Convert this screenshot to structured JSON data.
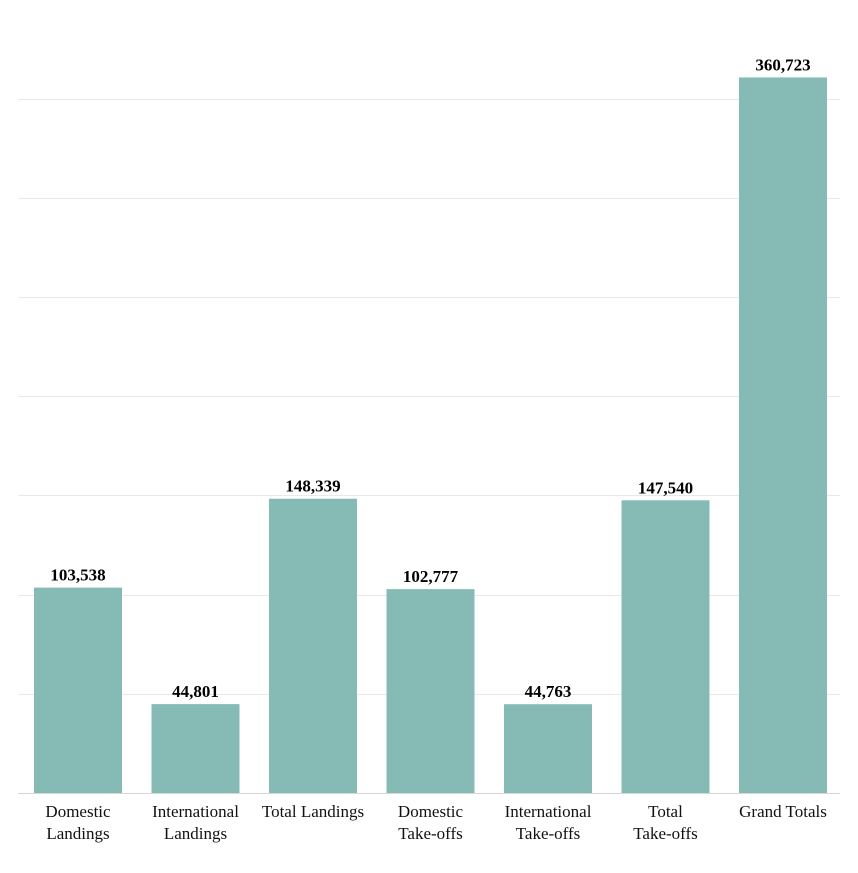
{
  "chart_data": {
    "type": "bar",
    "title": "",
    "xlabel": "",
    "ylabel": "",
    "categories": [
      [
        "Domestic",
        "Landings"
      ],
      [
        "International",
        "Landings"
      ],
      [
        "Total Landings"
      ],
      [
        "Domestic",
        "Take-offs"
      ],
      [
        "International",
        "Take-offs"
      ],
      [
        "Total",
        "Take-offs"
      ],
      [
        "Grand Totals"
      ]
    ],
    "values": [
      103538,
      44801,
      148339,
      102777,
      44763,
      147540,
      360723
    ],
    "value_labels": [
      "103,538",
      "44,801",
      "148,339",
      "102,777",
      "44,763",
      "147,540",
      "360,723"
    ],
    "ylim": [
      0,
      400000
    ],
    "gridline_step": 50000,
    "grid": true,
    "y_tick_labels_visible": false,
    "bar_color": "#86bbb5"
  }
}
